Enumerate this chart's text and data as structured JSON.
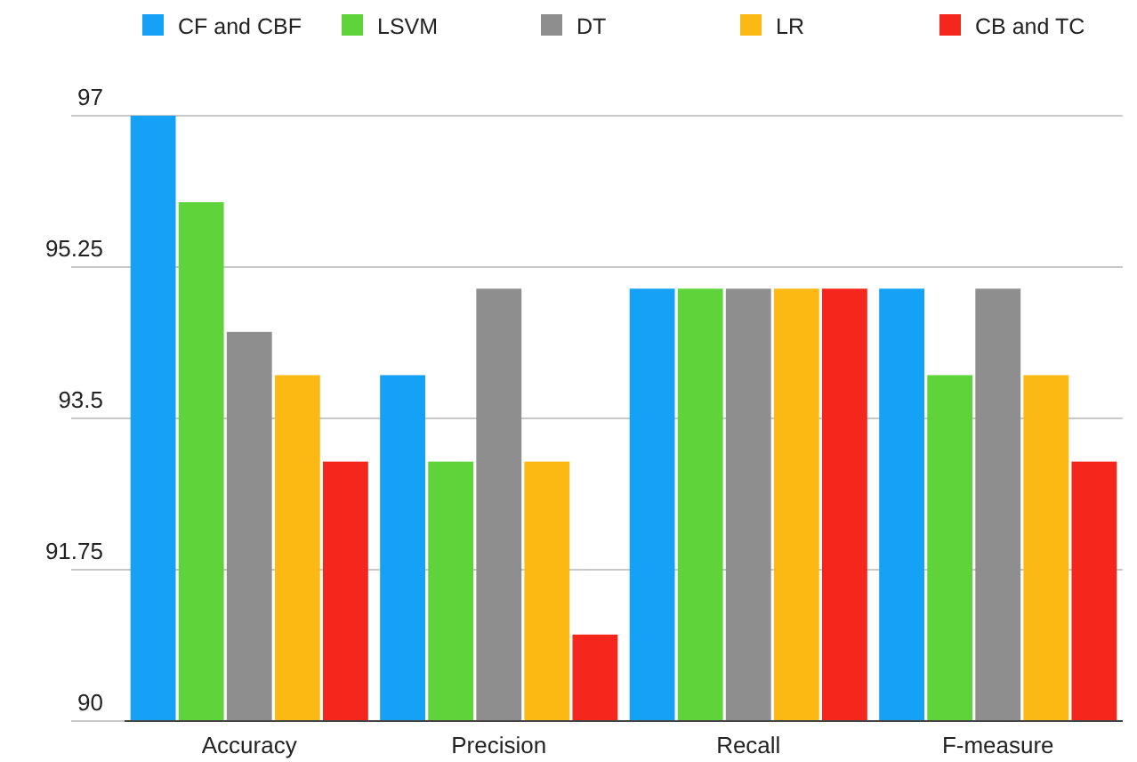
{
  "chart_data": {
    "type": "bar",
    "categories": [
      "Accuracy",
      "Precision",
      "Recall",
      "F-measure"
    ],
    "series": [
      {
        "name": "CF and CBF",
        "color": "#15a1f5",
        "values": [
          97,
          94,
          95,
          95
        ]
      },
      {
        "name": "LSVM",
        "color": "#5fd33a",
        "values": [
          96,
          93,
          95,
          94
        ]
      },
      {
        "name": "DT",
        "color": "#8e8e8e",
        "values": [
          94.5,
          95,
          95,
          95
        ]
      },
      {
        "name": "LR",
        "color": "#fdb913",
        "values": [
          94,
          93,
          95,
          94
        ]
      },
      {
        "name": "CB and TC",
        "color": "#f5261b",
        "values": [
          93,
          91,
          95,
          93
        ]
      }
    ],
    "ylim": [
      90,
      97
    ],
    "yticks": [
      90,
      91.75,
      93.5,
      95.25,
      97
    ],
    "grid": "y",
    "legend": "top"
  }
}
